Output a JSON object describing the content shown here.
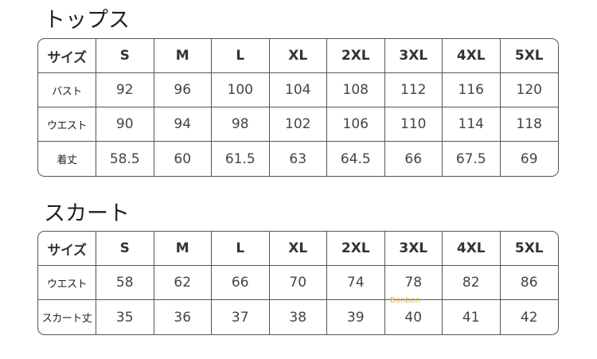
{
  "tops": {
    "title": "トップス",
    "header": [
      "サイズ",
      "S",
      "M",
      "L",
      "XL",
      "2XL",
      "3XL",
      "4XL",
      "5XL"
    ],
    "rows": [
      {
        "label": "バスト",
        "values": [
          "92",
          "96",
          "100",
          "104",
          "108",
          "112",
          "116",
          "120"
        ]
      },
      {
        "label": "ウエスト",
        "values": [
          "90",
          "94",
          "98",
          "102",
          "106",
          "110",
          "114",
          "118"
        ]
      },
      {
        "label": "着丈",
        "values": [
          "58.5",
          "60",
          "61.5",
          "63",
          "64.5",
          "66",
          "67.5",
          "69"
        ]
      }
    ]
  },
  "skirt": {
    "title": "スカート",
    "header": [
      "サイズ",
      "S",
      "M",
      "L",
      "XL",
      "2XL",
      "3XL",
      "4XL",
      "5XL"
    ],
    "rows": [
      {
        "label": "ウエスト",
        "values": [
          "58",
          "62",
          "66",
          "70",
          "74",
          "78",
          "82",
          "86"
        ]
      },
      {
        "label": "スカート丈",
        "values": [
          "35",
          "36",
          "37",
          "38",
          "39",
          "40",
          "41",
          "42"
        ]
      }
    ]
  },
  "watermark": "Bonbon"
}
